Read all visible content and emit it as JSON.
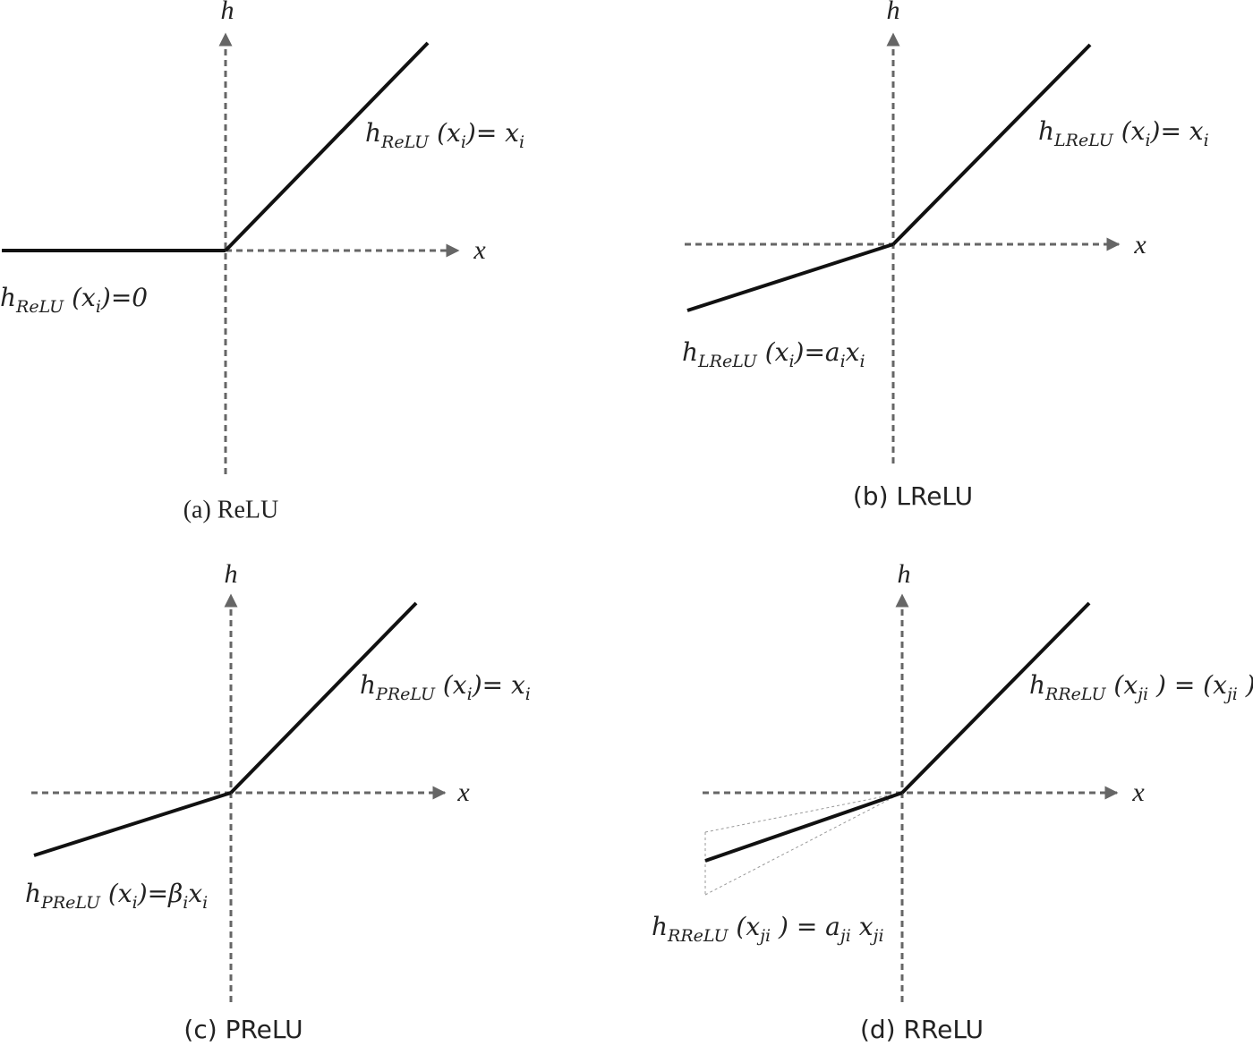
{
  "panels": [
    {
      "caption": "(a) ReLU",
      "y_axis": "h",
      "x_axis": "x",
      "formula_top": [
        "h",
        "ReLU",
        " (x",
        "i",
        ")=  x",
        "i"
      ],
      "formula_bottom": [
        "h",
        "ReLU",
        " (x",
        "i",
        ")=0"
      ]
    },
    {
      "caption": "(b) LReLU",
      "y_axis": "h",
      "x_axis": "x",
      "formula_top": [
        "h",
        "LReLU",
        " (x",
        "i",
        ")=  x",
        "i"
      ],
      "formula_bottom": [
        "h",
        "LReLU",
        " (x",
        "i",
        ")=a",
        "i",
        "x",
        "i"
      ]
    },
    {
      "caption": "(c)  PReLU",
      "y_axis": "h",
      "x_axis": "x",
      "formula_top": [
        "h",
        "PReLU",
        " (x",
        "i",
        ")=  x",
        "i"
      ],
      "formula_bottom": [
        "h",
        "PReLU",
        " (x",
        "i",
        ")=β",
        "i",
        "x",
        "i"
      ]
    },
    {
      "caption": "(d) RReLU",
      "y_axis": "h",
      "x_axis": "x",
      "formula_top": [
        "h",
        "RReLU",
        " (x",
        "ji",
        " ) = (x",
        "ji",
        " )"
      ],
      "formula_bottom": [
        "h",
        "RReLU",
        " (x",
        "ji",
        " ) = a",
        "ji",
        " x",
        "ji"
      ]
    }
  ]
}
